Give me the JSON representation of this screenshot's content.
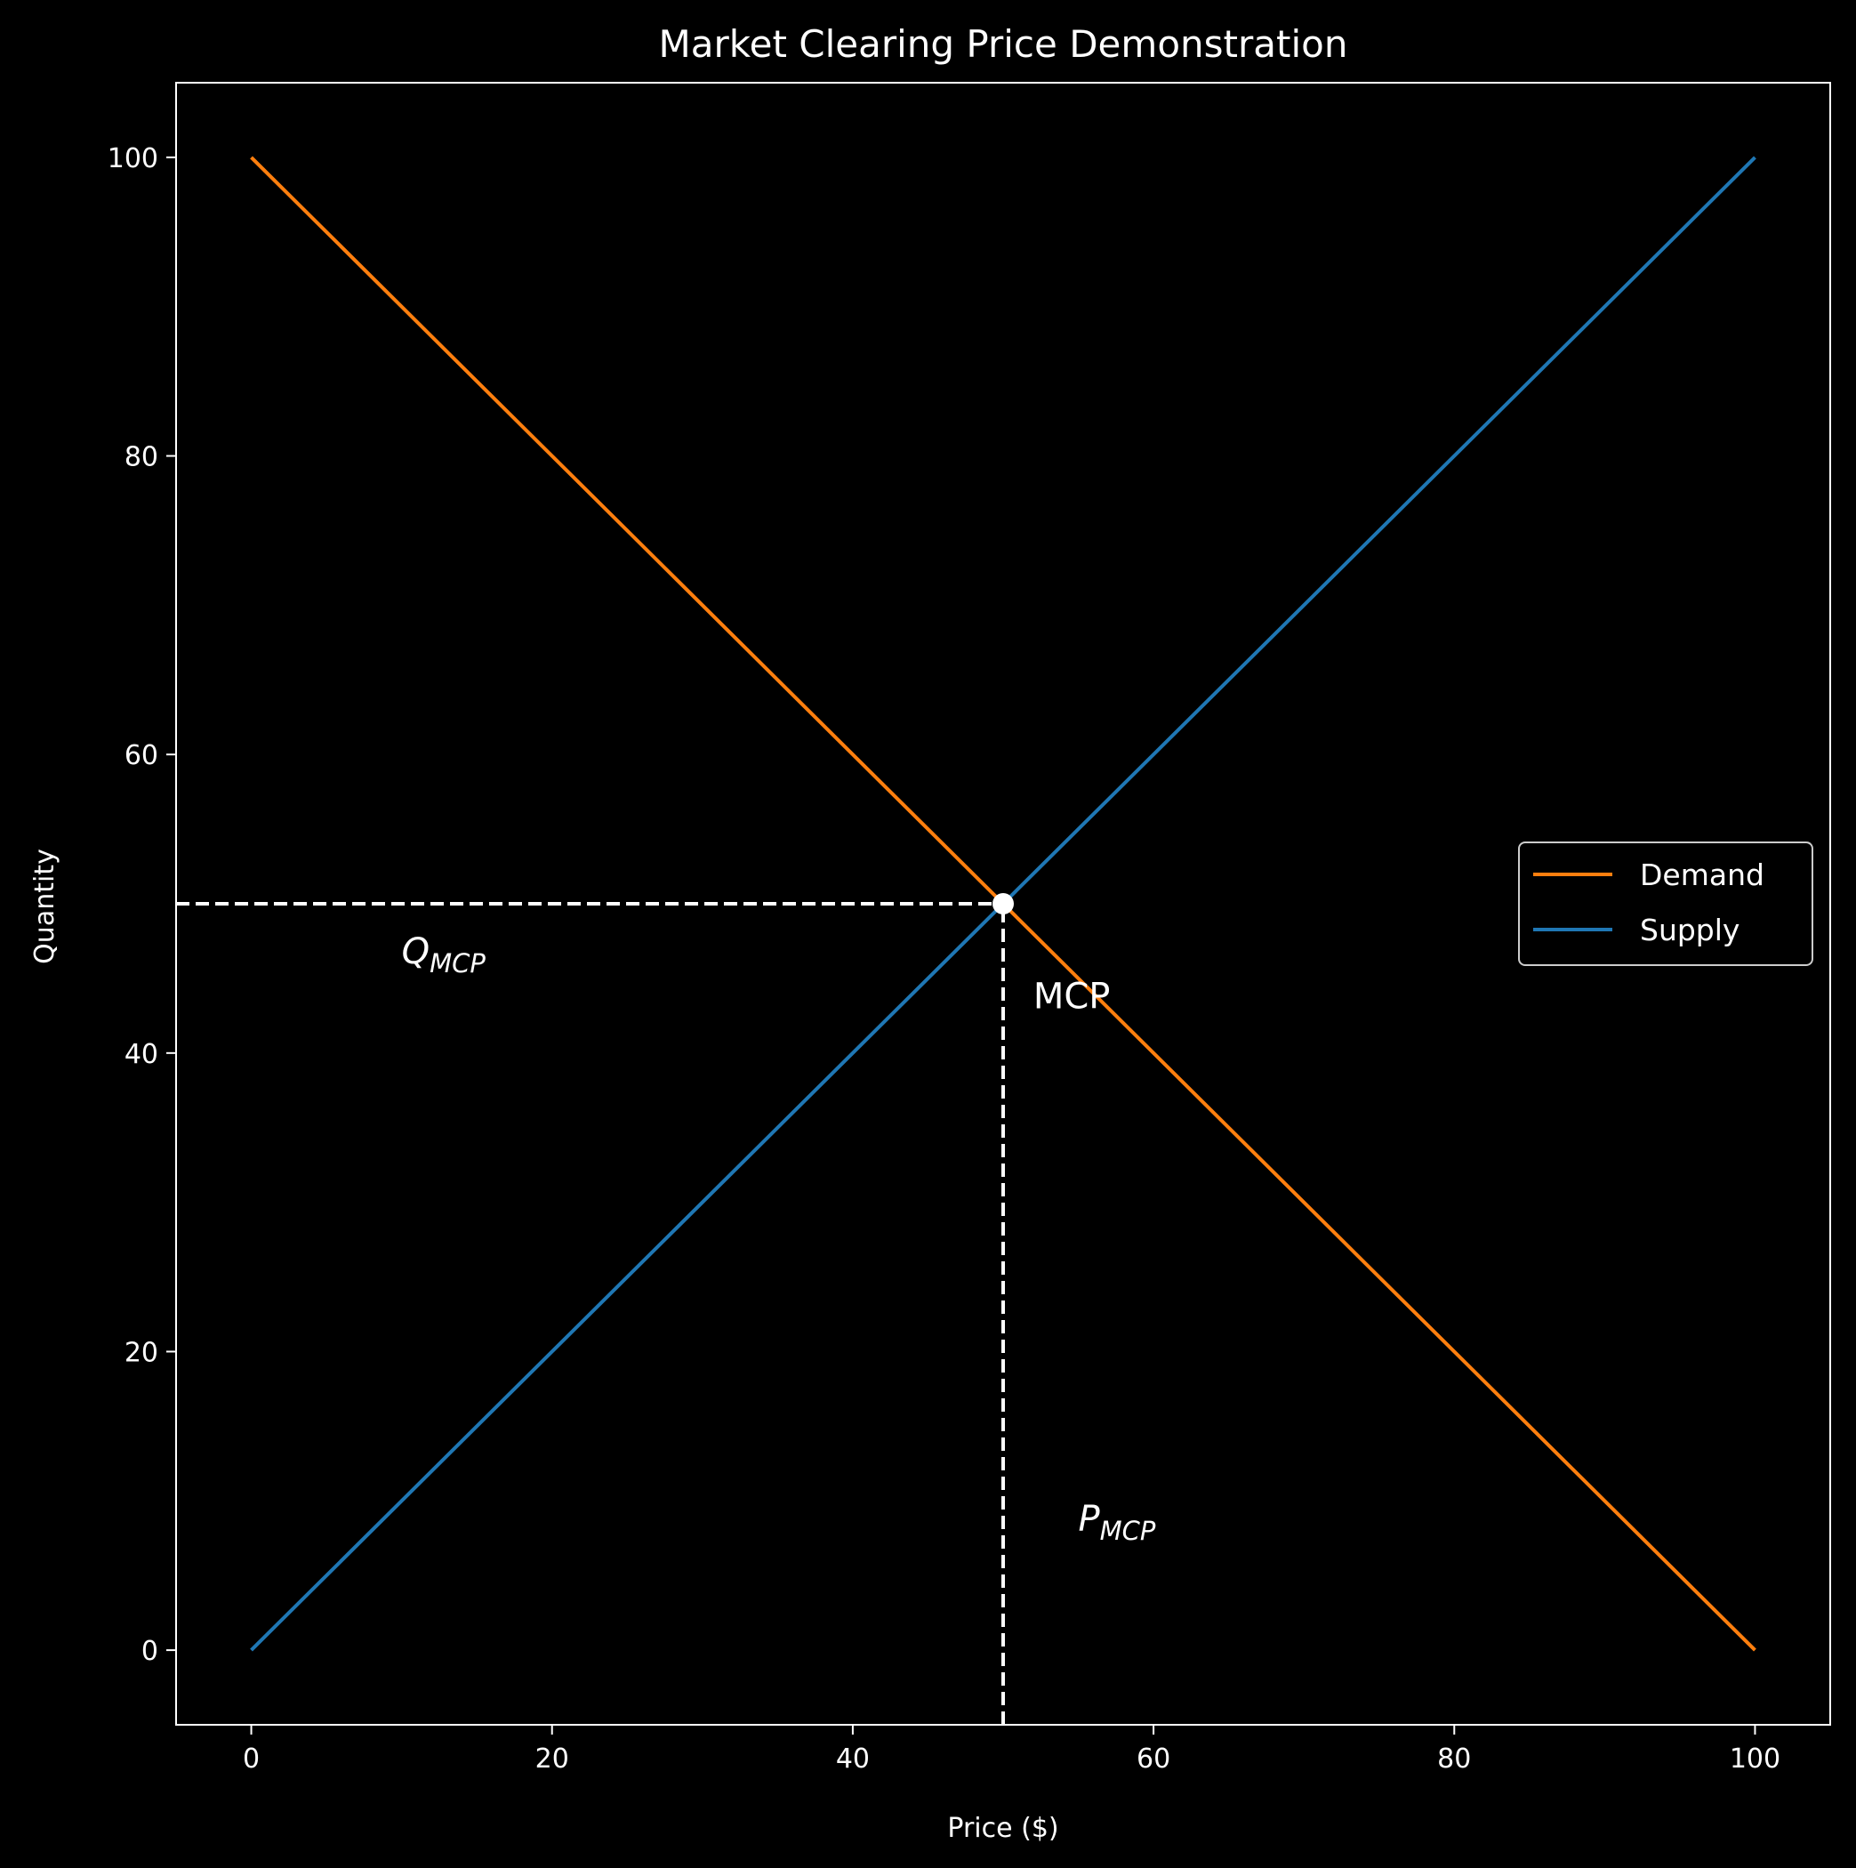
{
  "chart_data": {
    "type": "line",
    "title": "Market Clearing Price Demonstration",
    "xlabel": "Price ($)",
    "ylabel": "Quantity",
    "xlim": [
      -5,
      105
    ],
    "ylim": [
      -5,
      105
    ],
    "xticks": [
      0,
      20,
      40,
      60,
      80,
      100
    ],
    "yticks": [
      0,
      20,
      40,
      60,
      80,
      100
    ],
    "grid": false,
    "legend_position": "center-right",
    "series": [
      {
        "name": "Demand",
        "color": "#ff7f0e",
        "x": [
          0,
          100
        ],
        "y": [
          100,
          0
        ]
      },
      {
        "name": "Supply",
        "color": "#1f77b4",
        "x": [
          0,
          100
        ],
        "y": [
          0,
          100
        ]
      }
    ],
    "equilibrium_point": {
      "x": 50,
      "y": 50,
      "color": "#ffffff"
    },
    "reference_lines": [
      {
        "style": "dashed",
        "x": [
          -5,
          50
        ],
        "y": [
          50,
          50
        ],
        "color": "#ffffff"
      },
      {
        "style": "dashed",
        "x": [
          50,
          50
        ],
        "y": [
          -5,
          50
        ],
        "color": "#ffffff"
      }
    ],
    "annotations": [
      {
        "id": "q_mcp",
        "main": "Q",
        "sub": "MCP",
        "italic": true,
        "x": 10,
        "y": 46
      },
      {
        "id": "mcp",
        "text": "MCP",
        "italic": false,
        "x": 52,
        "y": 43
      },
      {
        "id": "p_mcp",
        "main": "P",
        "sub": "MCP",
        "italic": true,
        "x": 55,
        "y": 8
      }
    ]
  }
}
